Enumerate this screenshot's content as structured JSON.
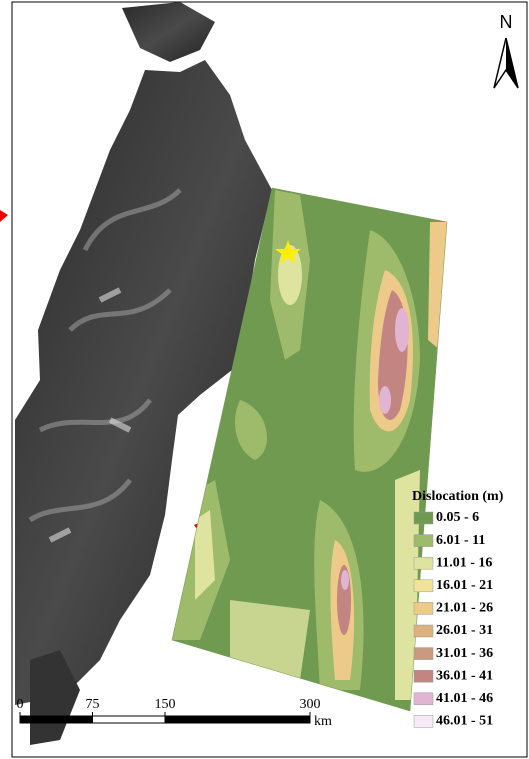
{
  "north_label": "N",
  "legend": {
    "title": "Dislocation (m)",
    "items": [
      {
        "label": "0.05 - 6",
        "color": "#6f9a4f"
      },
      {
        "label": "6.01 - 11",
        "color": "#9dbb6a"
      },
      {
        "label": "11.01 - 16",
        "color": "#dfe3a0"
      },
      {
        "label": "16.01 - 21",
        "color": "#f2e39b"
      },
      {
        "label": "21.01 - 26",
        "color": "#edc98a"
      },
      {
        "label": "26.01 - 31",
        "color": "#dcb07f"
      },
      {
        "label": "31.01 - 36",
        "color": "#c99a80"
      },
      {
        "label": "36.01 - 41",
        "color": "#c38582"
      },
      {
        "label": "41.01 - 46",
        "color": "#e0b4d2"
      },
      {
        "label": "46.01 - 51",
        "color": "#f7eaf6"
      }
    ]
  },
  "scale_bar": {
    "unit": "km",
    "ticks": [
      0,
      75,
      150,
      300
    ]
  }
}
